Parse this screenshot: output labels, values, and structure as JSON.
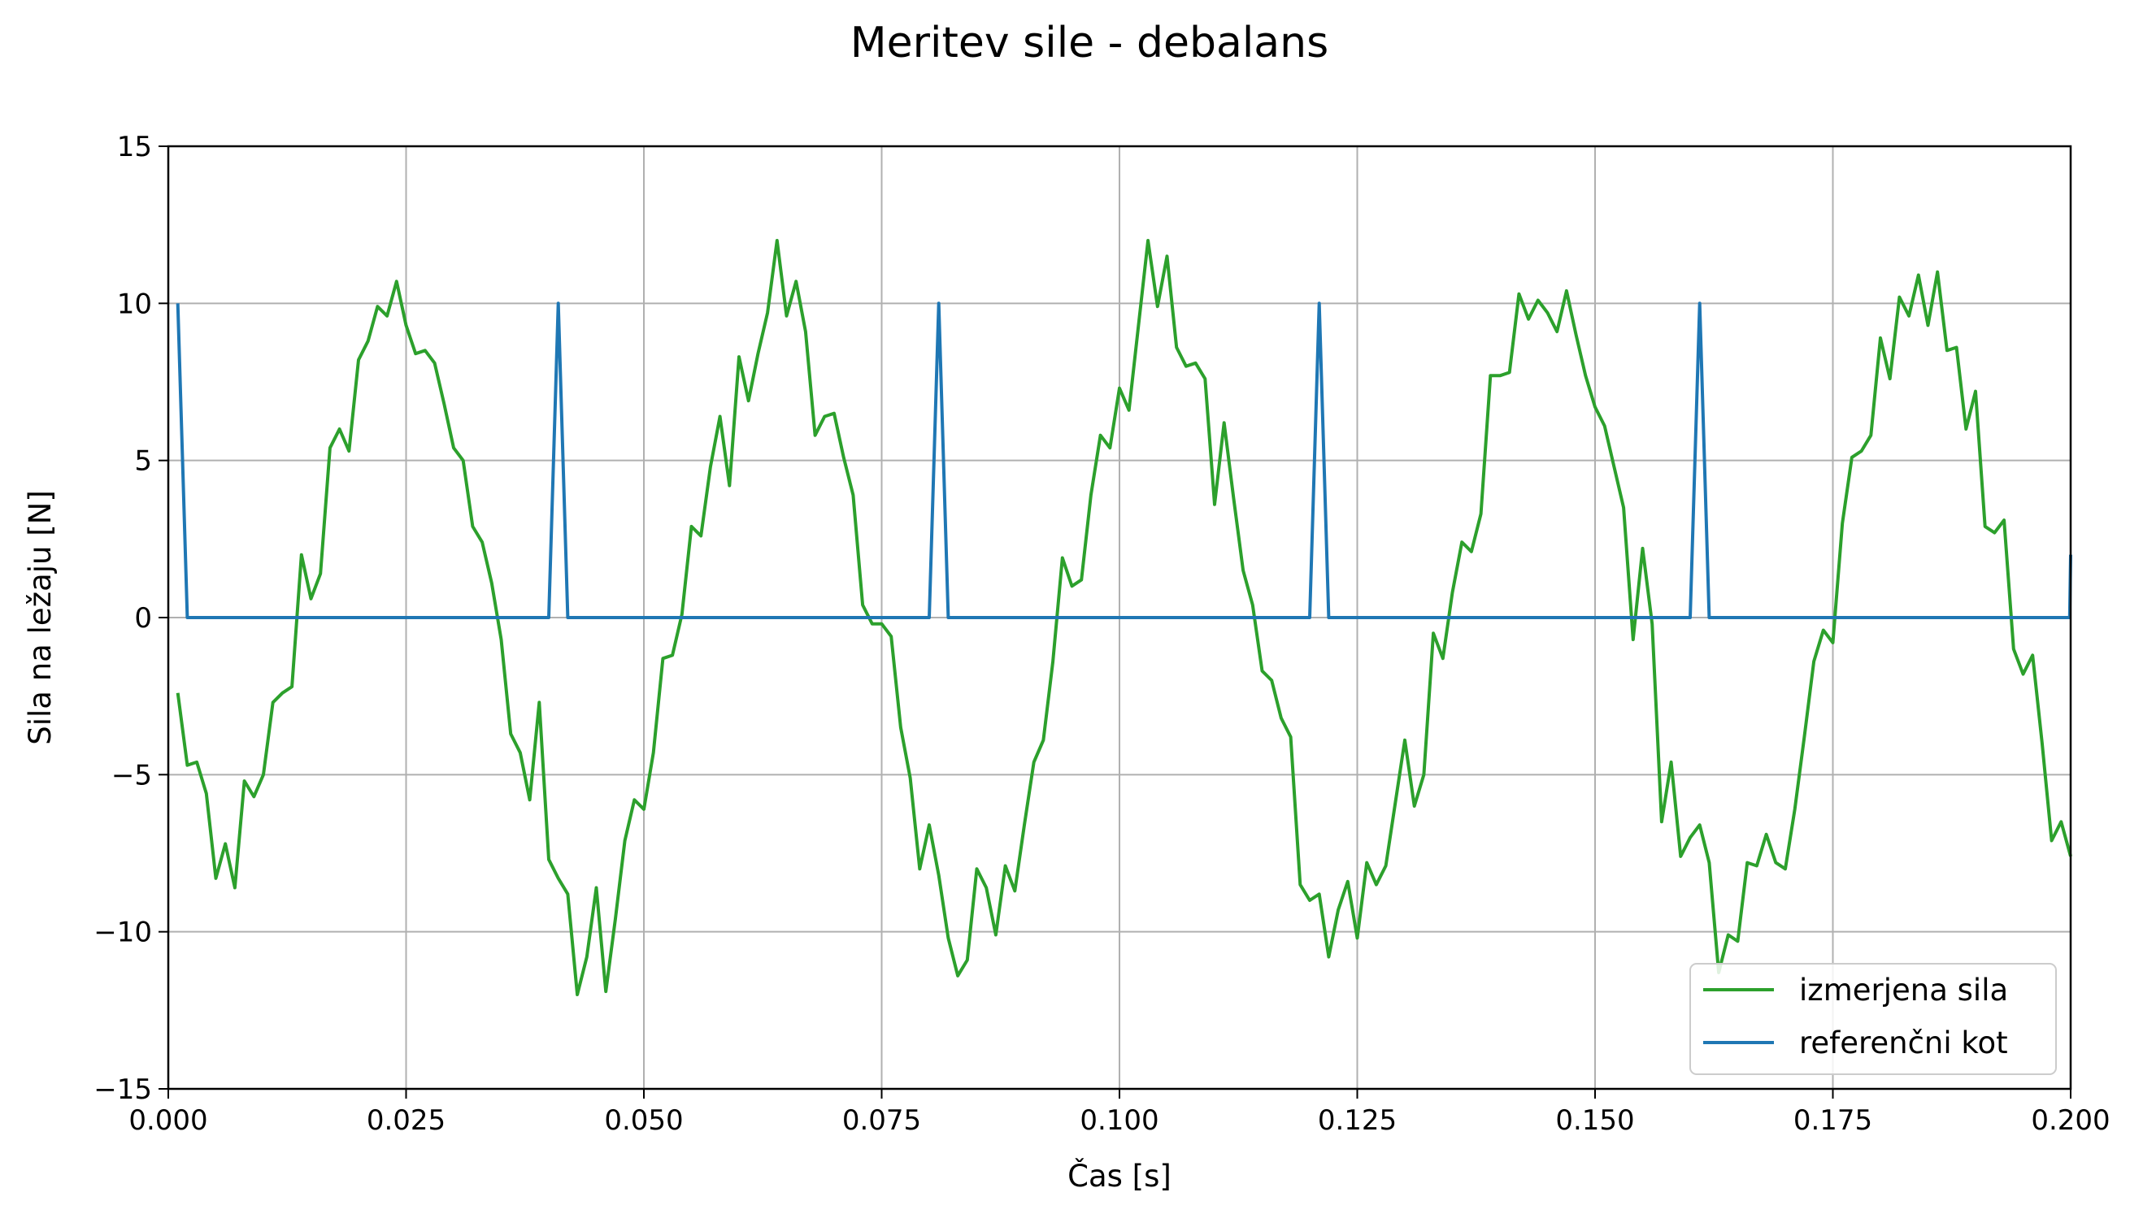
{
  "chart_data": {
    "type": "line",
    "title": "Meritev sile - debalans",
    "xlabel": "Čas [s]",
    "ylabel": "Sila na ležaju [N]",
    "xlim": [
      0.0,
      0.2
    ],
    "ylim": [
      -15,
      15
    ],
    "xticks": [
      "0.000",
      "0.025",
      "0.050",
      "0.075",
      "0.100",
      "0.125",
      "0.150",
      "0.175",
      "0.200"
    ],
    "yticks": [
      "−15",
      "−10",
      "−5",
      "0",
      "5",
      "10",
      "15"
    ],
    "grid": true,
    "legend_position": "lower-right",
    "series": [
      {
        "name": "izmerjena sila",
        "color": "#2ca02c",
        "points": [
          [
            0.001,
            -2.4
          ],
          [
            0.002,
            -4.7
          ],
          [
            0.003,
            -4.6
          ],
          [
            0.004,
            -5.6
          ],
          [
            0.005,
            -8.3
          ],
          [
            0.006,
            -7.2
          ],
          [
            0.007,
            -8.6
          ],
          [
            0.008,
            -5.2
          ],
          [
            0.009,
            -5.7
          ],
          [
            0.01,
            -5.0
          ],
          [
            0.011,
            -2.7
          ],
          [
            0.012,
            -2.4
          ],
          [
            0.013,
            -2.2
          ],
          [
            0.014,
            2.0
          ],
          [
            0.015,
            0.6
          ],
          [
            0.016,
            1.4
          ],
          [
            0.017,
            5.4
          ],
          [
            0.018,
            6.0
          ],
          [
            0.019,
            5.3
          ],
          [
            0.02,
            8.2
          ],
          [
            0.021,
            8.8
          ],
          [
            0.022,
            9.9
          ],
          [
            0.023,
            9.6
          ],
          [
            0.024,
            10.7
          ],
          [
            0.025,
            9.3
          ],
          [
            0.026,
            8.4
          ],
          [
            0.027,
            8.5
          ],
          [
            0.028,
            8.1
          ],
          [
            0.029,
            6.8
          ],
          [
            0.03,
            5.4
          ],
          [
            0.031,
            5.0
          ],
          [
            0.032,
            2.9
          ],
          [
            0.033,
            2.4
          ],
          [
            0.034,
            1.1
          ],
          [
            0.035,
            -0.7
          ],
          [
            0.036,
            -3.7
          ],
          [
            0.037,
            -4.3
          ],
          [
            0.038,
            -5.8
          ],
          [
            0.039,
            -2.7
          ],
          [
            0.04,
            -7.7
          ],
          [
            0.041,
            -8.3
          ],
          [
            0.042,
            -8.8
          ],
          [
            0.043,
            -12.0
          ],
          [
            0.044,
            -10.8
          ],
          [
            0.045,
            -8.6
          ],
          [
            0.046,
            -11.9
          ],
          [
            0.047,
            -9.6
          ],
          [
            0.048,
            -7.1
          ],
          [
            0.049,
            -5.8
          ],
          [
            0.05,
            -6.1
          ],
          [
            0.051,
            -4.3
          ],
          [
            0.052,
            -1.3
          ],
          [
            0.053,
            -1.2
          ],
          [
            0.054,
            0.1
          ],
          [
            0.055,
            2.9
          ],
          [
            0.056,
            2.6
          ],
          [
            0.057,
            4.8
          ],
          [
            0.058,
            6.4
          ],
          [
            0.059,
            4.2
          ],
          [
            0.06,
            8.3
          ],
          [
            0.061,
            6.9
          ],
          [
            0.062,
            8.4
          ],
          [
            0.063,
            9.7
          ],
          [
            0.064,
            12.0
          ],
          [
            0.065,
            9.6
          ],
          [
            0.066,
            10.7
          ],
          [
            0.067,
            9.1
          ],
          [
            0.068,
            5.8
          ],
          [
            0.069,
            6.4
          ],
          [
            0.07,
            6.5
          ],
          [
            0.071,
            5.1
          ],
          [
            0.072,
            3.9
          ],
          [
            0.073,
            0.4
          ],
          [
            0.074,
            -0.2
          ],
          [
            0.075,
            -0.2
          ],
          [
            0.076,
            -0.6
          ],
          [
            0.077,
            -3.5
          ],
          [
            0.078,
            -5.1
          ],
          [
            0.079,
            -8.0
          ],
          [
            0.08,
            -6.6
          ],
          [
            0.081,
            -8.2
          ],
          [
            0.082,
            -10.2
          ],
          [
            0.083,
            -11.4
          ],
          [
            0.084,
            -10.9
          ],
          [
            0.085,
            -8.0
          ],
          [
            0.086,
            -8.6
          ],
          [
            0.087,
            -10.1
          ],
          [
            0.088,
            -7.9
          ],
          [
            0.089,
            -8.7
          ],
          [
            0.09,
            -6.6
          ],
          [
            0.091,
            -4.6
          ],
          [
            0.092,
            -3.9
          ],
          [
            0.093,
            -1.4
          ],
          [
            0.094,
            1.9
          ],
          [
            0.095,
            1.0
          ],
          [
            0.096,
            1.2
          ],
          [
            0.097,
            3.9
          ],
          [
            0.098,
            5.8
          ],
          [
            0.099,
            5.4
          ],
          [
            0.1,
            7.3
          ],
          [
            0.101,
            6.6
          ],
          [
            0.102,
            9.3
          ],
          [
            0.103,
            12.0
          ],
          [
            0.104,
            9.9
          ],
          [
            0.105,
            11.5
          ],
          [
            0.106,
            8.6
          ],
          [
            0.107,
            8.0
          ],
          [
            0.108,
            8.1
          ],
          [
            0.109,
            7.6
          ],
          [
            0.11,
            3.6
          ],
          [
            0.111,
            6.2
          ],
          [
            0.112,
            3.8
          ],
          [
            0.113,
            1.5
          ],
          [
            0.114,
            0.4
          ],
          [
            0.115,
            -1.7
          ],
          [
            0.116,
            -2.0
          ],
          [
            0.117,
            -3.2
          ],
          [
            0.118,
            -3.8
          ],
          [
            0.119,
            -8.5
          ],
          [
            0.12,
            -9.0
          ],
          [
            0.121,
            -8.8
          ],
          [
            0.122,
            -10.8
          ],
          [
            0.123,
            -9.3
          ],
          [
            0.124,
            -8.4
          ],
          [
            0.125,
            -10.2
          ],
          [
            0.126,
            -7.8
          ],
          [
            0.127,
            -8.5
          ],
          [
            0.128,
            -7.9
          ],
          [
            0.129,
            -5.9
          ],
          [
            0.13,
            -3.9
          ],
          [
            0.131,
            -6.0
          ],
          [
            0.132,
            -5.0
          ],
          [
            0.133,
            -0.5
          ],
          [
            0.134,
            -1.3
          ],
          [
            0.135,
            0.8
          ],
          [
            0.136,
            2.4
          ],
          [
            0.137,
            2.1
          ],
          [
            0.138,
            3.3
          ],
          [
            0.139,
            7.7
          ],
          [
            0.14,
            7.7
          ],
          [
            0.141,
            7.8
          ],
          [
            0.142,
            10.3
          ],
          [
            0.143,
            9.5
          ],
          [
            0.144,
            10.1
          ],
          [
            0.145,
            9.7
          ],
          [
            0.146,
            9.1
          ],
          [
            0.147,
            10.4
          ],
          [
            0.148,
            9.0
          ],
          [
            0.149,
            7.7
          ],
          [
            0.15,
            6.7
          ],
          [
            0.151,
            6.1
          ],
          [
            0.152,
            4.8
          ],
          [
            0.153,
            3.5
          ],
          [
            0.154,
            -0.7
          ],
          [
            0.155,
            2.2
          ],
          [
            0.156,
            -0.2
          ],
          [
            0.157,
            -6.5
          ],
          [
            0.158,
            -4.6
          ],
          [
            0.159,
            -7.6
          ],
          [
            0.16,
            -7.0
          ],
          [
            0.161,
            -6.6
          ],
          [
            0.162,
            -7.8
          ],
          [
            0.163,
            -11.3
          ],
          [
            0.164,
            -10.1
          ],
          [
            0.165,
            -10.3
          ],
          [
            0.166,
            -7.8
          ],
          [
            0.167,
            -7.9
          ],
          [
            0.168,
            -6.9
          ],
          [
            0.169,
            -7.8
          ],
          [
            0.17,
            -8.0
          ],
          [
            0.171,
            -6.1
          ],
          [
            0.172,
            -3.8
          ],
          [
            0.173,
            -1.4
          ],
          [
            0.174,
            -0.4
          ],
          [
            0.175,
            -0.8
          ],
          [
            0.176,
            3.0
          ],
          [
            0.177,
            5.1
          ],
          [
            0.178,
            5.3
          ],
          [
            0.179,
            5.8
          ],
          [
            0.18,
            8.9
          ],
          [
            0.181,
            7.6
          ],
          [
            0.182,
            10.2
          ],
          [
            0.183,
            9.6
          ],
          [
            0.184,
            10.9
          ],
          [
            0.185,
            9.3
          ],
          [
            0.186,
            11.0
          ],
          [
            0.187,
            8.5
          ],
          [
            0.188,
            8.6
          ],
          [
            0.189,
            6.0
          ],
          [
            0.19,
            7.2
          ],
          [
            0.191,
            2.9
          ],
          [
            0.192,
            2.7
          ],
          [
            0.193,
            3.1
          ],
          [
            0.194,
            -1.0
          ],
          [
            0.195,
            -1.8
          ],
          [
            0.196,
            -1.2
          ],
          [
            0.197,
            -4.0
          ],
          [
            0.198,
            -7.1
          ],
          [
            0.199,
            -6.5
          ],
          [
            0.2,
            -7.6
          ]
        ]
      },
      {
        "name": "referenčni kot",
        "color": "#1f77b4",
        "points": [
          [
            0.001,
            10
          ],
          [
            0.002,
            0
          ],
          [
            0.04,
            0
          ],
          [
            0.041,
            10
          ],
          [
            0.042,
            0
          ],
          [
            0.08,
            0
          ],
          [
            0.081,
            10
          ],
          [
            0.082,
            0
          ],
          [
            0.12,
            0
          ],
          [
            0.121,
            10
          ],
          [
            0.122,
            0
          ],
          [
            0.16,
            0
          ],
          [
            0.161,
            10
          ],
          [
            0.162,
            0
          ],
          [
            0.1999,
            0
          ],
          [
            0.2,
            2
          ]
        ]
      }
    ]
  }
}
